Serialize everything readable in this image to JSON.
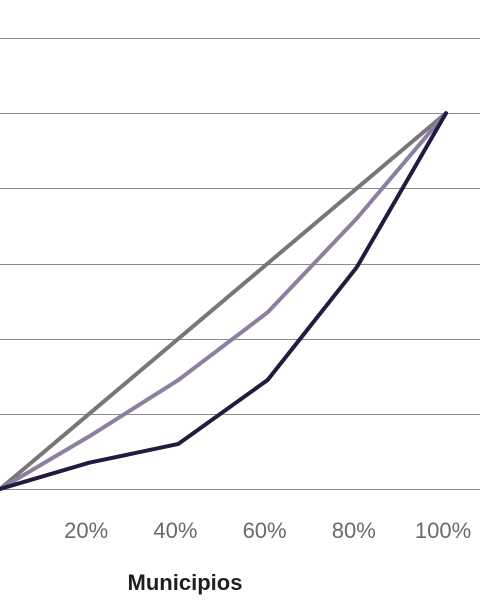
{
  "chart_data": {
    "type": "line",
    "xlabel": "Municipios",
    "ylabel": "",
    "x": [
      0,
      20,
      40,
      60,
      80,
      100
    ],
    "x_tick_labels": [
      "20%",
      "40%",
      "60%",
      "80%",
      "100%"
    ],
    "x_tick_values": [
      20,
      40,
      60,
      80,
      100
    ],
    "xlim": [
      0,
      100
    ],
    "ylim": [
      0,
      120
    ],
    "y_gridlines": [
      0,
      20,
      40,
      60,
      80,
      100,
      120
    ],
    "grid": "horizontal",
    "series": [
      {
        "values": [
          0,
          20,
          40,
          60,
          80,
          100
        ],
        "color": "#777777"
      },
      {
        "values": [
          0,
          14,
          29,
          47,
          72,
          100
        ],
        "color": "#8c7fa0"
      },
      {
        "values": [
          0,
          7,
          12,
          29,
          59,
          100
        ],
        "color": "#241a3f"
      }
    ]
  }
}
